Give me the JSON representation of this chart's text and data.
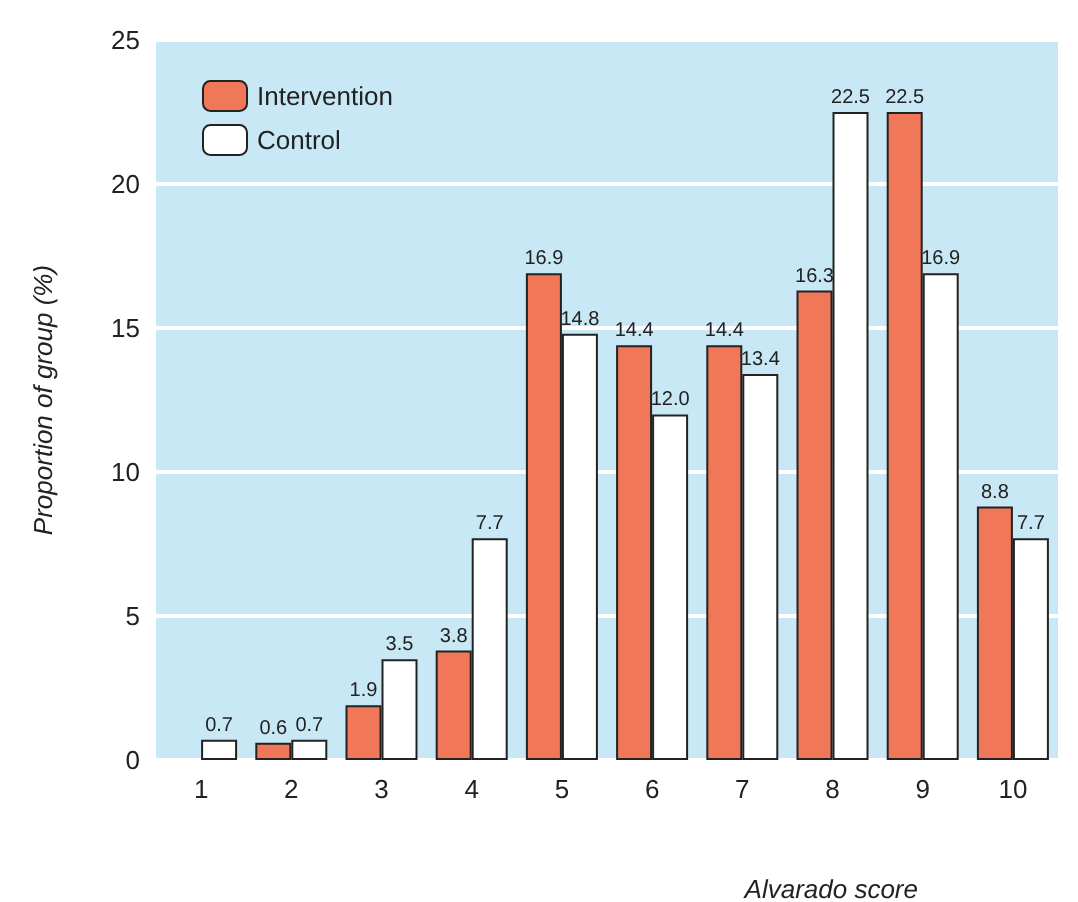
{
  "chart_data": {
    "type": "bar",
    "xlabel": "Alvarado score",
    "ylabel": "Proportion of group (%)",
    "categories": [
      "1",
      "2",
      "3",
      "4",
      "5",
      "6",
      "7",
      "8",
      "9",
      "10"
    ],
    "series": [
      {
        "name": "Intervention",
        "color": "#f07858",
        "values": [
          null,
          0.6,
          1.9,
          3.8,
          16.9,
          14.4,
          14.4,
          16.3,
          22.5,
          8.8
        ],
        "value_labels": [
          null,
          "0.6",
          "1.9",
          "3.8",
          "16.9",
          "14.4",
          "14.4",
          "16.3",
          "22.5",
          "8.8"
        ]
      },
      {
        "name": "Control",
        "color": "#ffffff",
        "values": [
          0.7,
          0.7,
          3.5,
          7.7,
          14.8,
          12.0,
          13.4,
          22.5,
          16.9,
          7.7
        ],
        "value_labels": [
          "0.7",
          "0.7",
          "3.5",
          "7.7",
          "14.8",
          "12.0",
          "13.4",
          "22.5",
          "16.9",
          "7.7"
        ]
      }
    ],
    "ylim": [
      0,
      25
    ],
    "yticks": [
      0,
      5,
      10,
      15,
      20,
      25
    ],
    "grid": "y",
    "legend": "top left"
  }
}
